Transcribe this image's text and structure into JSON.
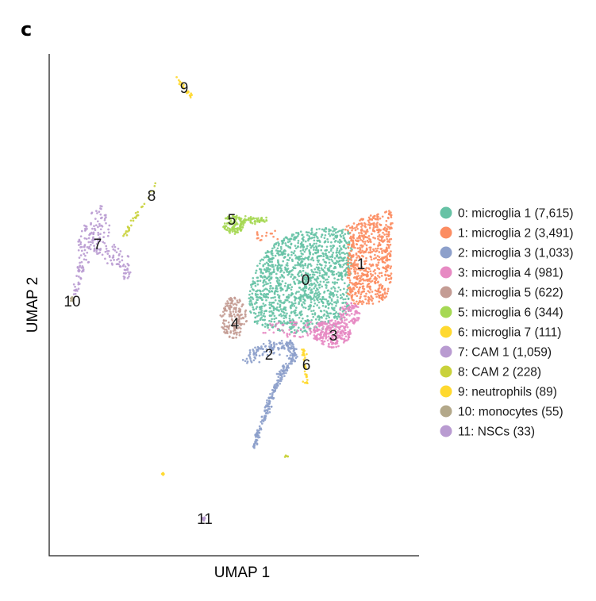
{
  "panel_label": "c",
  "chart_data": {
    "type": "scatter",
    "xlabel": "UMAP 1",
    "ylabel": "UMAP 2",
    "clusters": [
      {
        "id": "0",
        "name": "0: microglia 1 (7,615)",
        "count": 7615,
        "color": "#66c2a5"
      },
      {
        "id": "1",
        "name": "1: microglia 2 (3,491)",
        "count": 3491,
        "color": "#fc8d62"
      },
      {
        "id": "2",
        "name": "2: microglia 3 (1,033)",
        "count": 1033,
        "color": "#8da0cb"
      },
      {
        "id": "3",
        "name": "3: microglia 4 (981)",
        "count": 981,
        "color": "#e78ac3"
      },
      {
        "id": "4",
        "name": "4: microglia 5 (622)",
        "count": 622,
        "color": "#c49c94"
      },
      {
        "id": "5",
        "name": "5: microglia 6 (344)",
        "count": 344,
        "color": "#a6d854"
      },
      {
        "id": "6",
        "name": "6: microglia 7 (111)",
        "count": 111,
        "color": "#ffd92f"
      },
      {
        "id": "7",
        "name": "7: CAM 1 (1,059)",
        "count": 1059,
        "color": "#b99bd1"
      },
      {
        "id": "8",
        "name": "8: CAM 2 (228)",
        "count": 228,
        "color": "#c9d13a"
      },
      {
        "id": "9",
        "name": "9: neutrophils (89)",
        "count": 89,
        "color": "#ffd92f"
      },
      {
        "id": "10",
        "name": "10: monocytes (55)",
        "count": 55,
        "color": "#b3a88a"
      },
      {
        "id": "11",
        "name": "11: NSCs (33)",
        "count": 33,
        "color": "#b99bd1"
      }
    ],
    "legend_position": "right",
    "grid": false
  }
}
